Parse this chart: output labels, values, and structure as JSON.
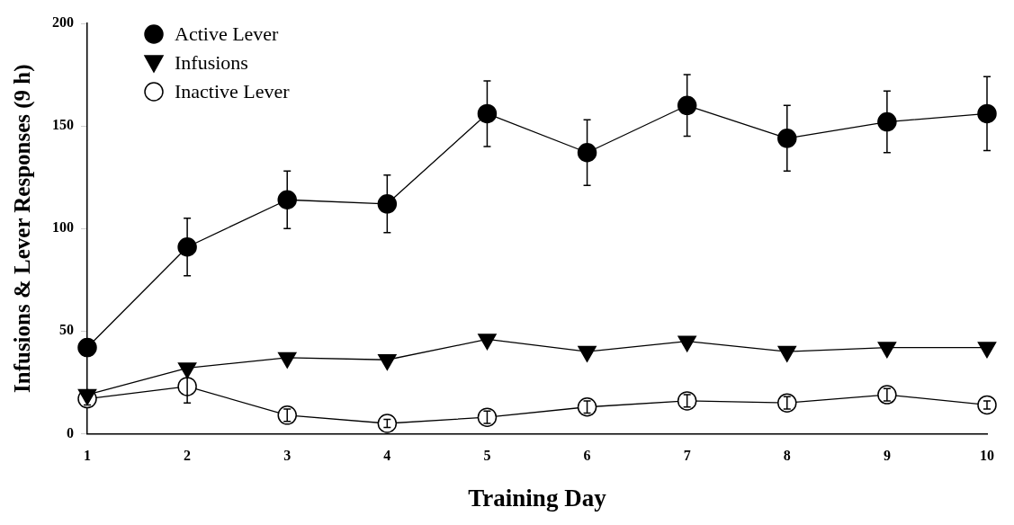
{
  "chart_data": {
    "type": "line",
    "xlabel": "Training Day",
    "ylabel": "Infusions & Lever Responses (9 h)",
    "x": [
      1,
      2,
      3,
      4,
      5,
      6,
      7,
      8,
      9,
      10
    ],
    "xlim": [
      1,
      10
    ],
    "xticks": [
      1,
      2,
      3,
      4,
      5,
      6,
      7,
      8,
      9,
      10
    ],
    "ylim": [
      0,
      200
    ],
    "yticks": [
      0,
      50,
      100,
      150,
      200
    ],
    "grid": false,
    "legend": "top left",
    "line_style": "solid",
    "series": [
      {
        "name": "Active Lever",
        "color": "#000000",
        "marker": "circle",
        "values": [
          42,
          91,
          114,
          112,
          156,
          137,
          160,
          144,
          152,
          156
        ],
        "errors": [
          4,
          14,
          14,
          14,
          16,
          16,
          15,
          16,
          15,
          18
        ]
      },
      {
        "name": "Infusions",
        "color": "#000000",
        "marker": "triangle",
        "values": [
          19,
          32,
          37,
          36,
          46,
          40,
          45,
          40,
          42,
          42
        ]
      },
      {
        "name": "Inactive Lever",
        "color": "#000000",
        "marker": "circle",
        "values": [
          17,
          23,
          9,
          5,
          8,
          13,
          16,
          15,
          19,
          14
        ],
        "errors": [
          3,
          8,
          3,
          2,
          3,
          3,
          3,
          3,
          3,
          2
        ]
      }
    ]
  }
}
